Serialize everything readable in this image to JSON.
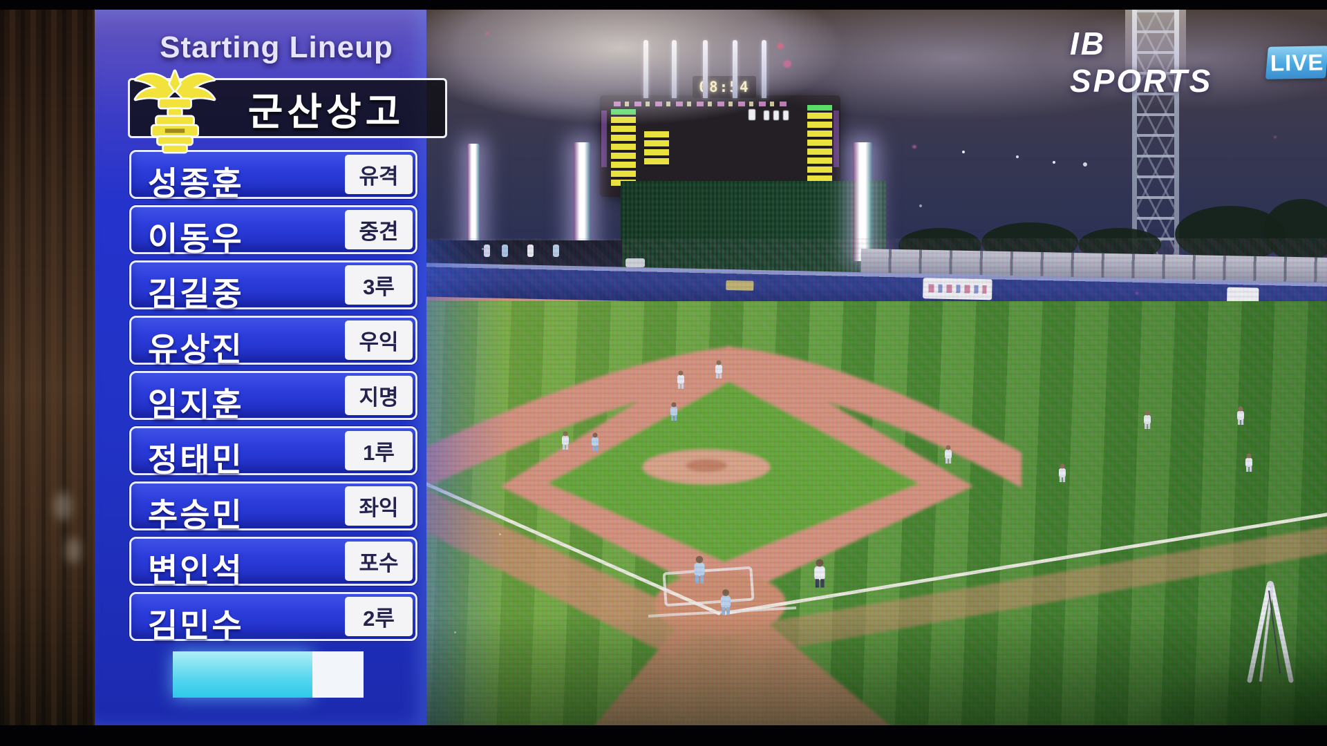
{
  "broadcast": {
    "graphic_title": "Starting Lineup",
    "team_name": "군산상고",
    "lineup": [
      {
        "name": "성종훈",
        "position": "유격"
      },
      {
        "name": "이동우",
        "position": "중견"
      },
      {
        "name": "김길중",
        "position": "3루"
      },
      {
        "name": "유상진",
        "position": "우익"
      },
      {
        "name": "임지훈",
        "position": "지명"
      },
      {
        "name": "정태민",
        "position": "1루"
      },
      {
        "name": "추승민",
        "position": "좌익"
      },
      {
        "name": "변인석",
        "position": "포수"
      },
      {
        "name": "김민수",
        "position": "2루"
      }
    ],
    "channel": {
      "name": "IB SPORTS",
      "live_label": "LIVE"
    },
    "scoreboard": {
      "clock": "08:54"
    },
    "icons": {
      "team_emblem": "school-crest-eagle"
    },
    "colors": {
      "panel_blue": "#2133c6",
      "row_blue": "#2b3cda",
      "accent_cyan": "#54d6ee",
      "crest_yellow": "#f2e23c",
      "live_chip_blue": "#49a7e0",
      "grass_green": "#4f9331",
      "dirt_salmon": "#d4917a",
      "wall_navy": "#1d2a6e"
    }
  }
}
